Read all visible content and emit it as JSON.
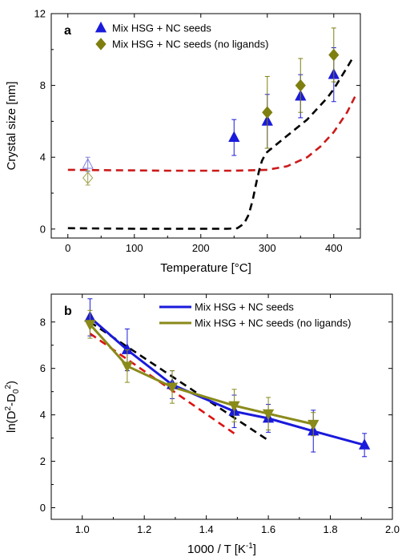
{
  "chart_data": [
    {
      "panel": "a",
      "type": "scatter",
      "xlabel": "Temperature [°C]",
      "ylabel": "Crystal size [nm]",
      "xlim": [
        -25,
        440
      ],
      "ylim": [
        -0.5,
        12
      ],
      "xticks": [
        0,
        100,
        200,
        300,
        400
      ],
      "yticks": [
        0,
        4,
        8,
        12
      ],
      "legend_position": "top-left",
      "series": [
        {
          "name": "Mix HSG + NC seeds",
          "marker": "triangle",
          "color": "#1a1adb",
          "x": [
            250,
            300,
            350,
            400
          ],
          "y": [
            5.1,
            6.0,
            7.4,
            8.6
          ],
          "err": [
            1.0,
            1.5,
            1.2,
            1.5
          ]
        },
        {
          "name": "Mix HSG + NC seeds (no ligands)",
          "marker": "diamond",
          "color": "#7f7f10",
          "x": [
            300,
            350,
            400
          ],
          "y": [
            6.5,
            8.0,
            9.7
          ],
          "err": [
            2.0,
            1.5,
            1.5
          ]
        },
        {
          "marker": "triangle-open",
          "color": "#8080e0",
          "x": [
            30
          ],
          "y": [
            3.6
          ],
          "err": [
            0.4
          ]
        },
        {
          "marker": "diamond-open",
          "color": "#a0a050",
          "x": [
            30
          ],
          "y": [
            2.85
          ],
          "err": [
            0.4
          ]
        }
      ],
      "curves": [
        {
          "style": "dashed",
          "color": "#cc1a1a",
          "x": [
            0,
            50,
            100,
            150,
            200,
            250,
            300,
            330,
            360,
            380,
            400,
            420,
            435
          ],
          "y": [
            3.3,
            3.28,
            3.27,
            3.25,
            3.25,
            3.25,
            3.3,
            3.5,
            4.0,
            4.6,
            5.4,
            6.5,
            7.6
          ]
        },
        {
          "style": "dashed",
          "color": "#000000",
          "x": [
            0,
            50,
            100,
            150,
            200,
            240,
            255,
            265,
            272,
            278,
            283,
            288,
            292,
            296,
            300,
            310,
            320,
            330,
            340,
            350,
            360,
            370,
            380,
            390,
            400,
            410,
            420,
            428
          ],
          "y": [
            0.05,
            0.03,
            0.02,
            0.02,
            0.02,
            0.02,
            0.05,
            0.3,
            0.8,
            1.6,
            2.5,
            3.3,
            3.8,
            4.1,
            4.3,
            4.6,
            4.9,
            5.2,
            5.5,
            5.8,
            6.1,
            6.5,
            6.9,
            7.3,
            7.8,
            8.4,
            9.0,
            9.5
          ]
        }
      ]
    },
    {
      "panel": "b",
      "type": "line",
      "xlabel": "1000 / T [K",
      "xlabel_sup": "-1",
      "xlabel_end": "]",
      "ylabel": "ln(D",
      "ylabel_sup1": "2",
      "ylabel_mid": "-D",
      "ylabel_sub": "0",
      "ylabel_sup2": "2",
      "ylabel_end": ")",
      "xlim": [
        0.9,
        2.0
      ],
      "ylim": [
        -0.5,
        9.2
      ],
      "xticks": [
        1.0,
        1.2,
        1.4,
        1.6,
        1.8,
        2.0
      ],
      "xtick_labels": [
        "1.0",
        "1.2",
        "1.4",
        "1.6",
        "1.8",
        "2.0"
      ],
      "yticks": [
        0,
        2,
        4,
        6,
        8
      ],
      "legend_position": "top-right",
      "series": [
        {
          "name": "Mix HSG + NC seeds",
          "marker": "triangle",
          "color": "#1a1adb",
          "x": [
            1.025,
            1.145,
            1.29,
            1.49,
            1.6,
            1.745,
            1.91
          ],
          "y": [
            8.2,
            6.8,
            5.3,
            4.15,
            3.85,
            3.3,
            2.7
          ],
          "err": [
            0.8,
            0.9,
            0.6,
            0.7,
            0.6,
            0.9,
            0.5
          ]
        },
        {
          "name": "Mix HSG + NC seeds (no ligands)",
          "marker": "triangle-down",
          "color": "#8a8a1a",
          "x": [
            1.025,
            1.145,
            1.29,
            1.49,
            1.6,
            1.745
          ],
          "y": [
            7.9,
            6.1,
            5.2,
            4.4,
            4.05,
            3.6
          ],
          "err": [
            0.6,
            0.7,
            0.7,
            0.7,
            0.7,
            0.5
          ]
        }
      ],
      "curves": [
        {
          "style": "dashed",
          "color": "#000000",
          "x": [
            1.025,
            1.6
          ],
          "y": [
            8.0,
            2.9
          ]
        },
        {
          "style": "dashed",
          "color": "#dd1111",
          "x": [
            1.025,
            1.49
          ],
          "y": [
            7.5,
            3.2
          ]
        }
      ]
    }
  ]
}
